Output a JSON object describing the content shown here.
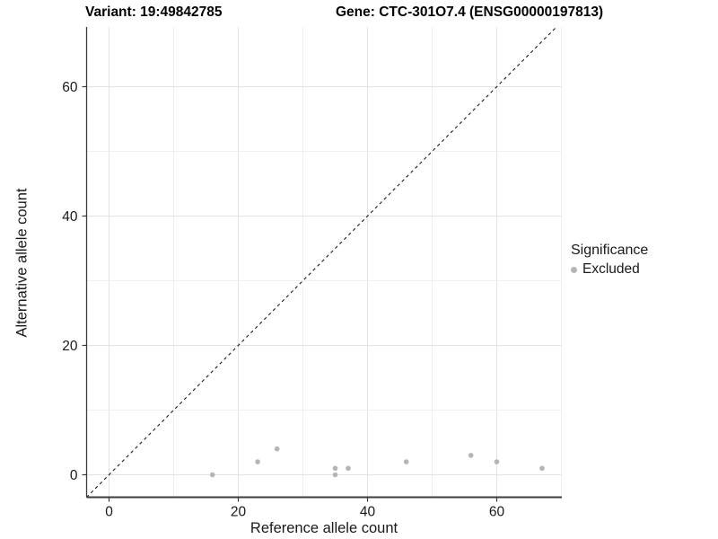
{
  "titles": {
    "variant": "Variant: 19:49842785",
    "gene": "Gene: CTC-301O7.4 (ENSG00000197813)"
  },
  "legend": {
    "title": "Significance",
    "items": [
      {
        "label": "Excluded",
        "color": "#b5b5b5"
      }
    ]
  },
  "chart_data": {
    "type": "scatter",
    "xlabel": "Reference allele count",
    "ylabel": "Alternative allele count",
    "xlim": [
      -3.5,
      70.5
    ],
    "ylim": [
      -3.5,
      69.3
    ],
    "xticks": [
      0,
      20,
      40,
      60
    ],
    "yticks": [
      0,
      20,
      40,
      60
    ],
    "grid": true,
    "grid_step_minor": 10,
    "equal_aspect": true,
    "legend_position": "right",
    "series": [
      {
        "name": "Excluded",
        "color": "#b5b5b5",
        "points": [
          [
            16,
            0
          ],
          [
            23,
            2
          ],
          [
            26,
            4
          ],
          [
            35,
            0
          ],
          [
            35,
            1
          ],
          [
            37,
            1
          ],
          [
            46,
            2
          ],
          [
            56,
            3
          ],
          [
            60,
            2
          ],
          [
            67,
            1
          ]
        ]
      }
    ],
    "reference_line": {
      "type": "identity",
      "style": "dashed"
    },
    "colors": {
      "point": "#b5b5b5",
      "grid_major": "#e4e4e4",
      "grid_minor": "#f0f0f0",
      "axis_line": "#3c3c3c",
      "tick_text": "#1a1a1a",
      "reference_line": "#1a1a1a"
    }
  }
}
